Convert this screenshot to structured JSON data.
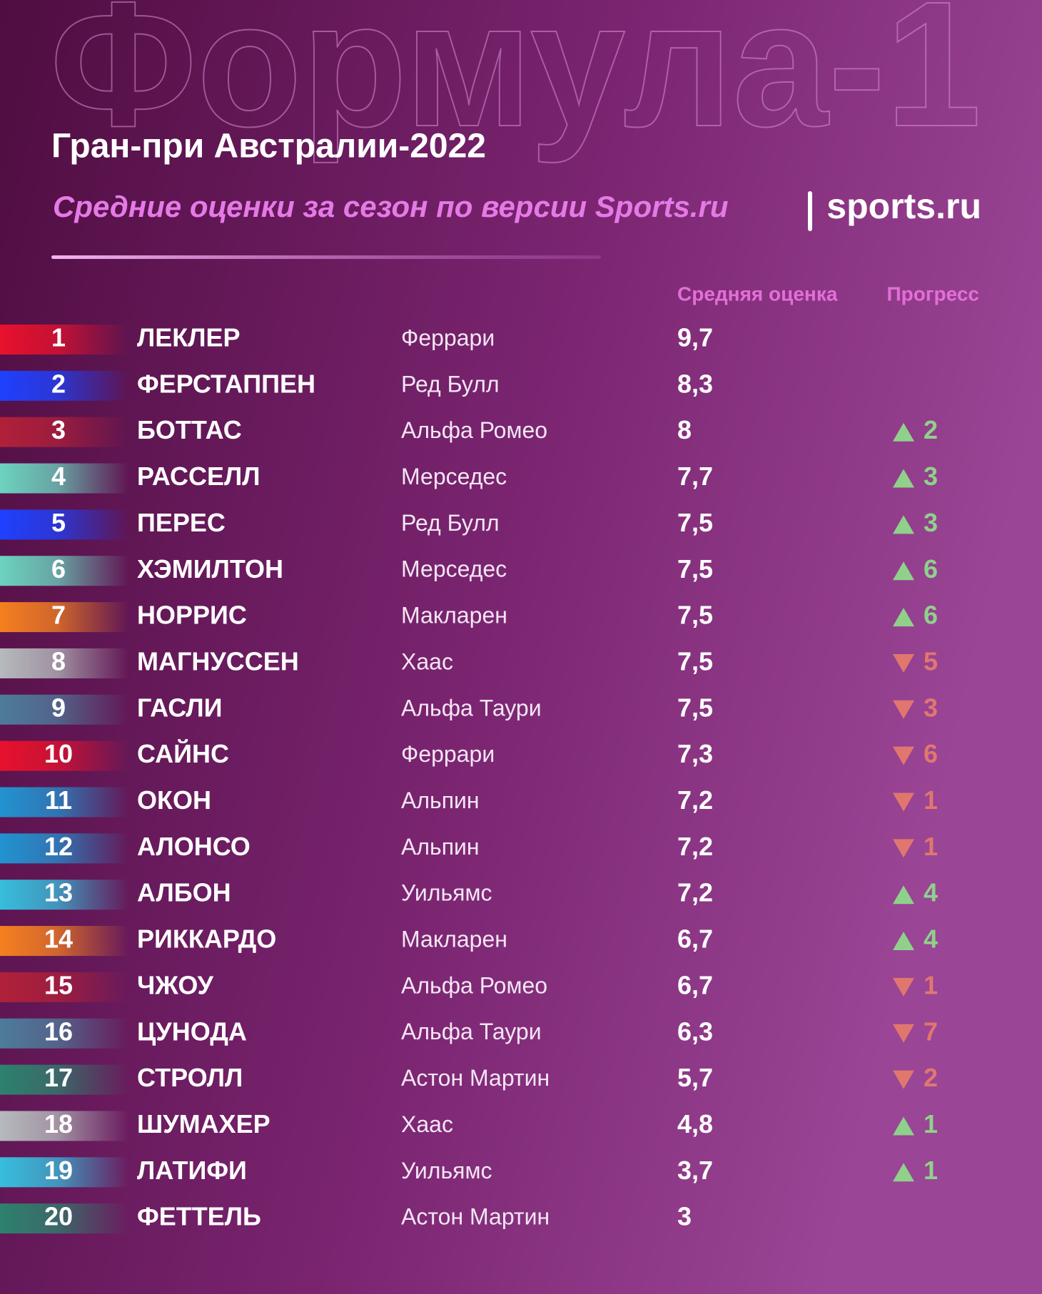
{
  "header": {
    "watermark": "Формула-1",
    "title": "Гран-при Австралии-2022",
    "subtitle": "Средние оценки за сезон по версии Sports.ru",
    "logo": "sports.ru"
  },
  "table": {
    "columns": {
      "score": "Средняя оценка",
      "progress": "Прогресс"
    },
    "rows": [
      {
        "rank": 1,
        "name": "ЛЕКЛЕР",
        "team": "Феррари",
        "score": "9,7",
        "color": "#e8112d"
      },
      {
        "rank": 2,
        "name": "ФЕРСТАППЕН",
        "team": "Ред Булл",
        "score": "8,3",
        "color": "#1e41ff"
      },
      {
        "rank": 3,
        "name": "БОТТАС",
        "team": "Альфа Ромео",
        "score": "8",
        "color": "#b12039",
        "progress": {
          "direction": "up",
          "value": 2
        }
      },
      {
        "rank": 4,
        "name": "РАССЕЛЛ",
        "team": "Мерседес",
        "score": "7,7",
        "color": "#6cd3bf",
        "progress": {
          "direction": "up",
          "value": 3
        }
      },
      {
        "rank": 5,
        "name": "ПЕРЕС",
        "team": "Ред Булл",
        "score": "7,5",
        "color": "#1e41ff",
        "progress": {
          "direction": "up",
          "value": 3
        }
      },
      {
        "rank": 6,
        "name": "ХЭМИЛТОН",
        "team": "Мерседес",
        "score": "7,5",
        "color": "#6cd3bf",
        "progress": {
          "direction": "up",
          "value": 6
        }
      },
      {
        "rank": 7,
        "name": "НОРРИС",
        "team": "Макларен",
        "score": "7,5",
        "color": "#f58020",
        "progress": {
          "direction": "up",
          "value": 6
        }
      },
      {
        "rank": 8,
        "name": "МАГНУССЕН",
        "team": "Хаас",
        "score": "7,5",
        "color": "#b6babd",
        "progress": {
          "direction": "down",
          "value": 5
        }
      },
      {
        "rank": 9,
        "name": "ГАСЛИ",
        "team": "Альфа Таури",
        "score": "7,5",
        "color": "#4e7c9b",
        "progress": {
          "direction": "down",
          "value": 3
        }
      },
      {
        "rank": 10,
        "name": "САЙНС",
        "team": "Феррари",
        "score": "7,3",
        "color": "#e8112d",
        "progress": {
          "direction": "down",
          "value": 6
        }
      },
      {
        "rank": 11,
        "name": "ОКОН",
        "team": "Альпин",
        "score": "7,2",
        "color": "#2293d1",
        "progress": {
          "direction": "down",
          "value": 1
        }
      },
      {
        "rank": 12,
        "name": "АЛОНСО",
        "team": "Альпин",
        "score": "7,2",
        "color": "#2293d1",
        "progress": {
          "direction": "down",
          "value": 1
        }
      },
      {
        "rank": 13,
        "name": "АЛБОН",
        "team": "Уильямс",
        "score": "7,2",
        "color": "#37bedd",
        "progress": {
          "direction": "up",
          "value": 4
        }
      },
      {
        "rank": 14,
        "name": "РИККАРДО",
        "team": "Макларен",
        "score": "6,7",
        "color": "#f58020",
        "progress": {
          "direction": "up",
          "value": 4
        }
      },
      {
        "rank": 15,
        "name": "ЧЖОУ",
        "team": "Альфа Ромео",
        "score": "6,7",
        "color": "#b12039",
        "progress": {
          "direction": "down",
          "value": 1
        }
      },
      {
        "rank": 16,
        "name": "ЦУНОДА",
        "team": "Альфа Таури",
        "score": "6,3",
        "color": "#4e7c9b",
        "progress": {
          "direction": "down",
          "value": 7
        }
      },
      {
        "rank": 17,
        "name": "СТРОЛЛ",
        "team": "Астон Мартин",
        "score": "5,7",
        "color": "#2d826d",
        "progress": {
          "direction": "down",
          "value": 2
        }
      },
      {
        "rank": 18,
        "name": "ШУМАХЕР",
        "team": "Хаас",
        "score": "4,8",
        "color": "#b6babd",
        "progress": {
          "direction": "up",
          "value": 1
        }
      },
      {
        "rank": 19,
        "name": "ЛАТИФИ",
        "team": "Уильямс",
        "score": "3,7",
        "color": "#37bedd",
        "progress": {
          "direction": "up",
          "value": 1
        }
      },
      {
        "rank": 20,
        "name": "ФЕТТЕЛЬ",
        "team": "Астон Мартин",
        "score": "3",
        "color": "#2d826d"
      }
    ]
  }
}
